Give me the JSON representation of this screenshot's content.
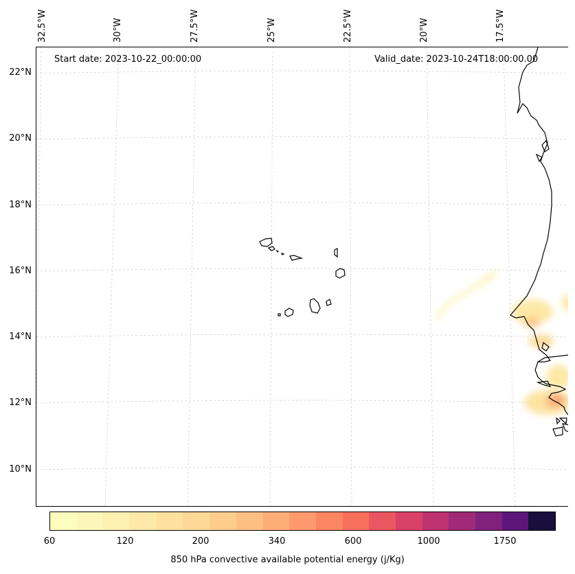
{
  "header": {
    "start_date": "Start date: 2023-10-22_00:00:00",
    "valid_date": "Valid_date: 2023-10-24T18:00:00.00"
  },
  "map": {
    "lon_labels": [
      "32.5°W",
      "30°W",
      "27.5°W",
      "25°W",
      "22.5°W",
      "20°W",
      "17.5°W"
    ],
    "lat_labels": [
      "22°N",
      "20°N",
      "18°N",
      "16°N",
      "14°N",
      "12°N",
      "10°N"
    ],
    "gridlines": true,
    "coastline_color": "#000000"
  },
  "colorbar": {
    "label": "850 hPa convective available potential energy (j/Kg)",
    "tick_labels": [
      "60",
      "120",
      "200",
      "340",
      "600",
      "1000",
      "1750"
    ],
    "colors": [
      "#fcfdbf",
      "#fcf6b8",
      "#fdf0b1",
      "#fee9a9",
      "#fee19f",
      "#fed896",
      "#fecd8c",
      "#febf83",
      "#fdae78",
      "#fd9a6d",
      "#fb8662",
      "#f6705c",
      "#eb5760",
      "#d84268",
      "#be3272",
      "#9f2a78",
      "#80217d",
      "#5f167b",
      "#180f3d"
    ]
  }
}
